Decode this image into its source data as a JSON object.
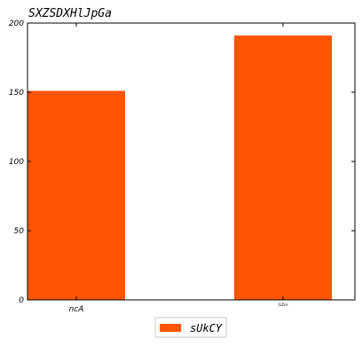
{
  "chart_data": {
    "type": "bar",
    "title": "SXZSDXHlJpGa",
    "xlabel": "",
    "ylabel": "",
    "categories": [
      "ncA",
      "GZm"
    ],
    "series": [
      {
        "name": "sUkCY",
        "values": [
          151,
          191
        ],
        "color": "#ff5500"
      }
    ],
    "ylim": [
      0,
      200
    ],
    "yticks": [
      "0",
      "50",
      "100",
      "150",
      "200"
    ],
    "grid": false,
    "legend": "bottom-center"
  }
}
